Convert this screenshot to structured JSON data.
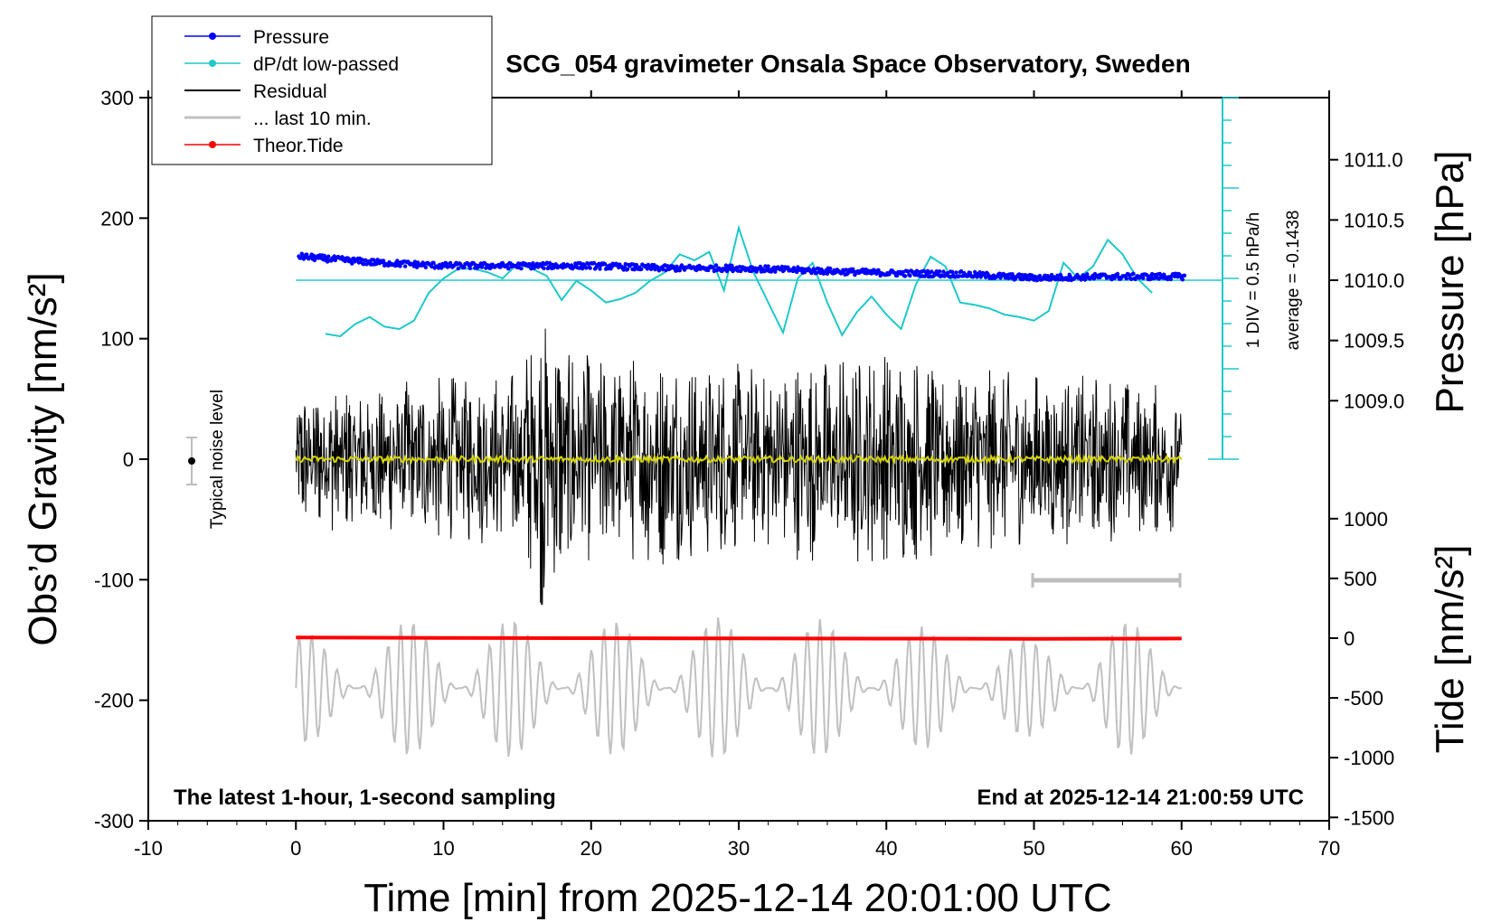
{
  "chart_data": {
    "type": "line",
    "title": "SCG_054 gravimeter Onsala Space Observatory, Sweden",
    "xlabel": "Time [min] from 2025-12-14 20:01:00 UTC",
    "ylabel_left": "Obs’d Gravity [nm/s²]",
    "ylabel_right_top": "Pressure [hPa]",
    "ylabel_right_bottom": "Tide [nm/s²]",
    "xlim": [
      -10,
      70
    ],
    "ylim_left": [
      -300,
      300
    ],
    "x_ticks": [
      "-10",
      "0",
      "10",
      "20",
      "30",
      "40",
      "50",
      "60",
      "70"
    ],
    "y_left_ticks": [
      "-300",
      "-200",
      "-100",
      "0",
      "100",
      "200",
      "300"
    ],
    "pressure_ticks": [
      "1009.0",
      "1009.5",
      "1010.0",
      "1010.5",
      "1011.0"
    ],
    "tide_ticks": [
      "-1500",
      "-1000",
      "-500",
      "0",
      "500",
      "1000"
    ],
    "legend": {
      "position": "top-left",
      "items": [
        {
          "label": "Pressure",
          "color": "#0000ff",
          "marker": "dot"
        },
        {
          "label": "dP/dt low-passed",
          "color": "#20c8c8",
          "marker": "dot"
        },
        {
          "label": "Residual",
          "color": "#000000",
          "marker": "none"
        },
        {
          "label": "... last 10 min.",
          "color": "#c0c0c0",
          "marker": "none"
        },
        {
          "label": "Theor.Tide",
          "color": "#ff0000",
          "marker": "dot"
        }
      ]
    },
    "annotations": {
      "noise_label": "Typical noise level",
      "div_label": "1 DIV = 0.5 hPa/h",
      "average_label": "average = -0.1438",
      "bottom_left": "The latest 1-hour, 1-second sampling",
      "bottom_right": "End at 2025-12-14 21:00:59 UTC"
    },
    "series": [
      {
        "name": "Pressure",
        "axis": "pressure_hPa",
        "x": [
          0,
          5,
          10,
          15,
          20,
          25,
          30,
          35,
          40,
          45,
          50,
          55,
          60
        ],
        "y": [
          1010.2,
          1010.15,
          1010.12,
          1010.12,
          1010.12,
          1010.1,
          1010.1,
          1010.08,
          1010.06,
          1010.05,
          1010.02,
          1010.03,
          1010.03
        ]
      },
      {
        "name": "dP/dt low-passed",
        "axis": "left_nm_s2",
        "x": [
          2,
          3,
          4,
          5,
          6,
          7,
          8,
          9,
          10,
          11,
          12,
          13,
          14,
          15,
          16,
          17,
          18,
          19,
          20,
          21,
          22,
          23,
          24,
          25,
          26,
          27,
          28,
          29,
          30,
          31,
          32,
          33,
          34,
          35,
          36,
          37,
          38,
          39,
          40,
          41,
          42,
          43,
          44,
          45,
          46,
          47,
          48,
          49,
          50,
          51,
          52,
          53,
          54,
          55,
          56,
          57,
          58
        ],
        "y": [
          104,
          102,
          112,
          118,
          110,
          108,
          115,
          138,
          150,
          158,
          158,
          155,
          150,
          162,
          158,
          152,
          132,
          148,
          140,
          130,
          133,
          138,
          148,
          155,
          170,
          165,
          172,
          140,
          192,
          155,
          130,
          105,
          150,
          163,
          130,
          103,
          122,
          135,
          120,
          108,
          145,
          168,
          160,
          130,
          128,
          125,
          120,
          118,
          115,
          123,
          163,
          150,
          160,
          182,
          170,
          150,
          138
        ]
      },
      {
        "name": "Residual",
        "axis": "left_nm_s2",
        "x": [
          0,
          60
        ],
        "y": [
          0,
          0
        ],
        "envelope": {
          "x": [
            0,
            5,
            10,
            15,
            16.5,
            20,
            25,
            30,
            35,
            40,
            45,
            50,
            55,
            60
          ],
          "amplitude": [
            60,
            65,
            70,
            75,
            130,
            85,
            90,
            80,
            85,
            95,
            80,
            75,
            70,
            60
          ]
        }
      },
      {
        "name": "... last 10 min.",
        "axis": "left_nm_s2",
        "x": [
          0,
          60
        ],
        "y": [
          -190,
          -190
        ],
        "envelope": {
          "x": [
            0,
            10,
            20,
            30,
            40,
            50,
            55,
            60
          ],
          "amplitude": [
            45,
            60,
            55,
            60,
            55,
            40,
            60,
            45
          ]
        }
      },
      {
        "name": "Theor.Tide",
        "axis": "tide_nm_s2",
        "x": [
          0,
          10,
          20,
          30,
          40,
          50,
          60
        ],
        "y": [
          5,
          2,
          0,
          -2,
          -4,
          -5,
          -3
        ]
      }
    ],
    "grid": false
  }
}
